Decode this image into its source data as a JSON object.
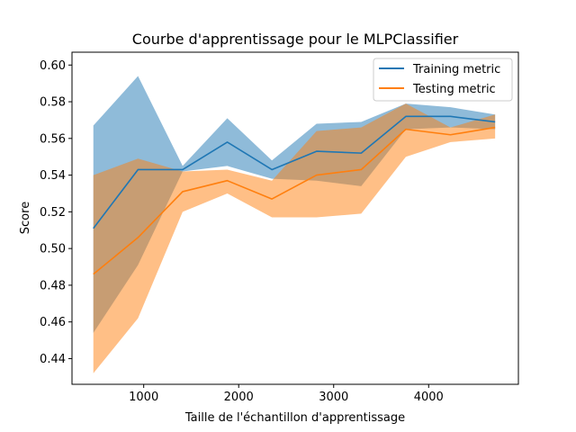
{
  "chart_data": {
    "type": "line",
    "title": "Courbe d'apprentissage pour le MLPClassifier",
    "xlabel": "Taille de l'échantillon d'apprentissage",
    "ylabel": "Score",
    "xlim": [
      245,
      4945
    ],
    "ylim": [
      0.426,
      0.607
    ],
    "xticks": [
      1000,
      2000,
      3000,
      4000
    ],
    "xtick_labels": [
      "1000",
      "2000",
      "3000",
      "4000"
    ],
    "yticks": [
      0.44,
      0.46,
      0.48,
      0.5,
      0.52,
      0.54,
      0.56,
      0.58,
      0.6
    ],
    "ytick_labels": [
      "0.44",
      "0.46",
      "0.48",
      "0.50",
      "0.52",
      "0.54",
      "0.56",
      "0.58",
      "0.60"
    ],
    "grid": false,
    "legend_position": "top-right",
    "x": [
      470,
      940,
      1410,
      1880,
      2350,
      2820,
      3290,
      3760,
      4230,
      4700
    ],
    "series": [
      {
        "name": "Training metric",
        "color": "#1f77b4",
        "band_color": "#1f77b4",
        "band_opacity": 0.5,
        "mean": [
          0.511,
          0.543,
          0.543,
          0.558,
          0.543,
          0.553,
          0.552,
          0.572,
          0.572,
          0.569
        ],
        "lower": [
          0.454,
          0.491,
          0.542,
          0.545,
          0.538,
          0.537,
          0.534,
          0.565,
          0.566,
          0.565
        ],
        "upper": [
          0.567,
          0.594,
          0.545,
          0.571,
          0.548,
          0.568,
          0.569,
          0.579,
          0.577,
          0.573
        ]
      },
      {
        "name": "Testing metric",
        "color": "#ff7f0e",
        "band_color": "#ff7f0e",
        "band_opacity": 0.5,
        "mean": [
          0.486,
          0.506,
          0.531,
          0.537,
          0.527,
          0.54,
          0.543,
          0.565,
          0.562,
          0.566
        ],
        "lower": [
          0.432,
          0.462,
          0.52,
          0.53,
          0.517,
          0.517,
          0.519,
          0.55,
          0.558,
          0.56
        ],
        "upper": [
          0.54,
          0.549,
          0.542,
          0.543,
          0.537,
          0.564,
          0.566,
          0.579,
          0.566,
          0.573
        ]
      }
    ]
  }
}
